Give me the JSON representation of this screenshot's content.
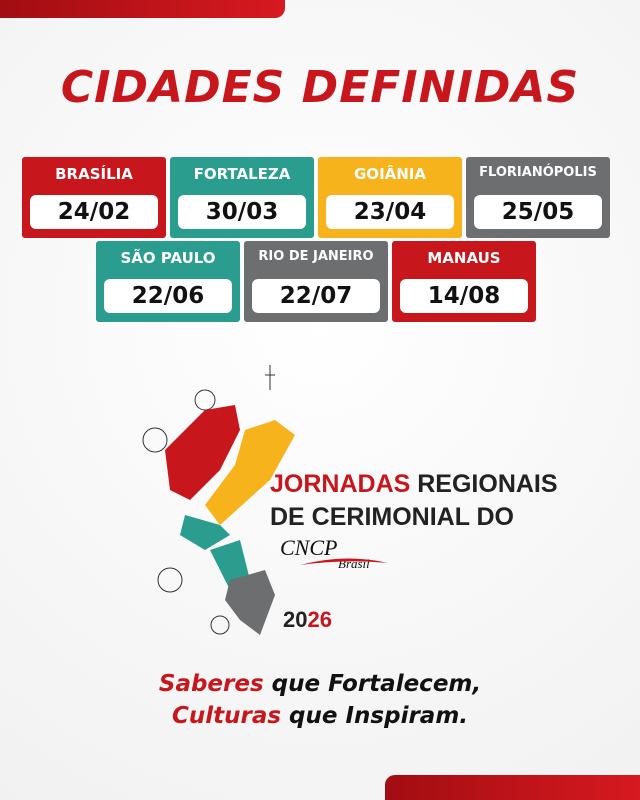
{
  "title": "CIDADES DEFINIDAS",
  "cities": [
    {
      "name": "BRASÍLIA",
      "date": "24/02",
      "color": "#c8161d"
    },
    {
      "name": "FORTALEZA",
      "date": "30/03",
      "color": "#2a9d8f"
    },
    {
      "name": "GOIÂNIA",
      "date": "23/04",
      "color": "#f6b31b"
    },
    {
      "name": "FLORIANÓPOLIS",
      "date": "25/05",
      "color": "#6d6e70"
    },
    {
      "name": "SÃO PAULO",
      "date": "22/06",
      "color": "#2a9d8f"
    },
    {
      "name": "RIO DE JANEIRO",
      "date": "22/07",
      "color": "#6d6e70"
    },
    {
      "name": "MANAUS",
      "date": "14/08",
      "color": "#c8161d"
    }
  ],
  "logo": {
    "word1": "JORNADAS",
    "word2": "REGIONAIS",
    "line2": "DE CERIMONIAL DO",
    "brand": "CNCP",
    "brand_sub": "Brasil",
    "year_a": "20",
    "year_b": "26"
  },
  "tagline": {
    "line1_em": "Saberes",
    "line1_rest": "que Fortalecem,",
    "line2_em": "Culturas",
    "line2_rest": "que Inspiram."
  }
}
